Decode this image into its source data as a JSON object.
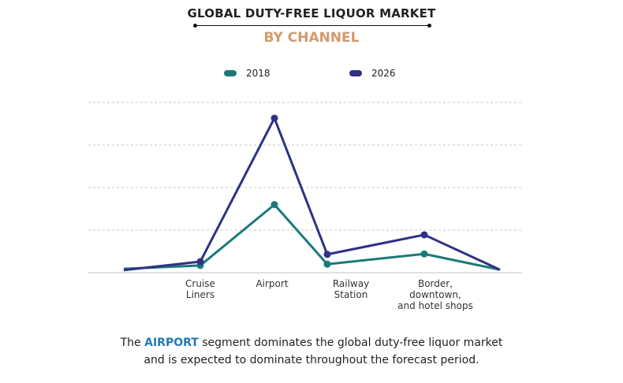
{
  "header": {
    "title": "GLOBAL DUTY-FREE LIQUOR MARKET",
    "subtitle": "BY CHANNEL"
  },
  "chart_data": {
    "type": "line",
    "title": "GLOBAL DUTY-FREE LIQUOR MARKET",
    "subtitle": "BY CHANNEL",
    "categories": [
      "",
      "Cruise Liners",
      "Airport",
      "Railway Station",
      "Border, downtown, and hotel shops",
      ""
    ],
    "category_lines": [
      [],
      [
        "Cruise",
        "Liners"
      ],
      [
        "Airport"
      ],
      [
        "Railway",
        "Station"
      ],
      [
        "Border,",
        "downtown,",
        "and hotel shops"
      ],
      []
    ],
    "series": [
      {
        "name": "2018",
        "color": "#1b7a78",
        "values": [
          0.09,
          0.17,
          1.6,
          0.2,
          0.44,
          0.07
        ]
      },
      {
        "name": "2026",
        "color": "#2e3184",
        "values": [
          0.06,
          0.26,
          3.63,
          0.43,
          0.89,
          0.07
        ]
      }
    ],
    "ylim": [
      0,
      4
    ],
    "grid": true,
    "legend": "top-center",
    "xlabel": "",
    "ylabel": ""
  },
  "footer": {
    "pre": "The ",
    "highlight": "AIRPORT",
    "post": " segment dominates the global duty-free liquor market",
    "line2": "and is expected to dominate throughout the forecast period."
  }
}
